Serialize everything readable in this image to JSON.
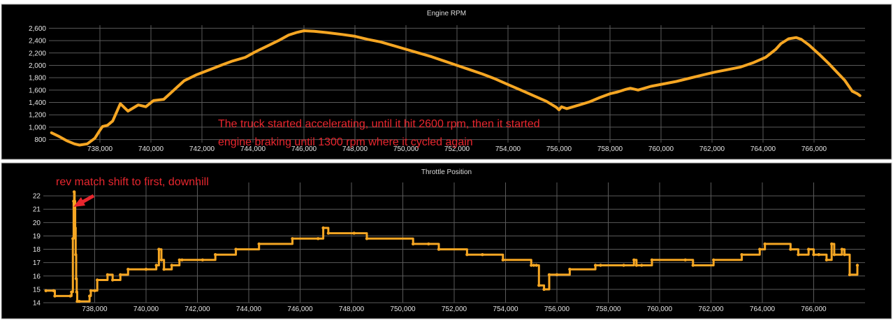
{
  "chart_data": [
    {
      "type": "line",
      "title": "Engine RPM",
      "xlabel": "",
      "ylabel": "",
      "xlim": [
        736000,
        768000
      ],
      "ylim": [
        750,
        2650
      ],
      "x_ticks": [
        "738,000",
        "740,000",
        "742,000",
        "744,000",
        "746,000",
        "748,000",
        "750,000",
        "752,000",
        "754,000",
        "756,000",
        "758,000",
        "760,000",
        "762,000",
        "764,000",
        "766,000"
      ],
      "y_ticks": [
        "800",
        "1,000",
        "1,200",
        "1,400",
        "1,600",
        "1,800",
        "2,000",
        "2,200",
        "2,400",
        "2,600"
      ],
      "grid": true,
      "series": [
        {
          "color": "#f5a623",
          "x": [
            736100,
            736400,
            736700,
            737000,
            737200,
            737500,
            737800,
            738000,
            738100,
            738300,
            738500,
            738800,
            739100,
            739500,
            739800,
            740100,
            740500,
            740900,
            741300,
            741800,
            742300,
            742800,
            743200,
            743700,
            744100,
            744500,
            745000,
            745400,
            745700,
            746000,
            746400,
            746900,
            747500,
            748000,
            748500,
            749000,
            749500,
            750000,
            750500,
            751000,
            751500,
            752000,
            752500,
            753000,
            753500,
            754000,
            754500,
            755000,
            755500,
            755900,
            756000,
            756100,
            756300,
            756800,
            757200,
            757600,
            758000,
            758300,
            758600,
            758800,
            759100,
            759600,
            760100,
            760600,
            761100,
            761600,
            762100,
            762600,
            763100,
            763600,
            764100,
            764500,
            764700,
            765000,
            765300,
            765500,
            765800,
            766200,
            766600,
            766900,
            767200,
            767500,
            767700,
            767800
          ],
          "y": [
            910,
            850,
            780,
            730,
            710,
            730,
            820,
            950,
            1010,
            1030,
            1100,
            1380,
            1260,
            1360,
            1330,
            1430,
            1450,
            1600,
            1750,
            1850,
            1930,
            2010,
            2070,
            2130,
            2220,
            2300,
            2400,
            2490,
            2530,
            2560,
            2550,
            2530,
            2500,
            2470,
            2420,
            2380,
            2320,
            2260,
            2200,
            2140,
            2070,
            2000,
            1930,
            1860,
            1780,
            1690,
            1600,
            1510,
            1420,
            1320,
            1280,
            1330,
            1300,
            1360,
            1410,
            1480,
            1540,
            1570,
            1610,
            1630,
            1600,
            1660,
            1700,
            1740,
            1790,
            1840,
            1890,
            1930,
            1970,
            2040,
            2130,
            2260,
            2350,
            2430,
            2450,
            2420,
            2330,
            2180,
            2020,
            1890,
            1760,
            1580,
            1540,
            1510
          ]
        }
      ],
      "annotations": [
        "The truck started accelerating, until it hit 2600 rpm, then it started",
        "engine braking until 1300 rpm where it cycled again"
      ]
    },
    {
      "type": "line",
      "title": "Throttle Position",
      "xlabel": "",
      "ylabel": "",
      "xlim": [
        736000,
        768000
      ],
      "ylim": [
        14,
        23
      ],
      "x_ticks": [
        "738,000",
        "740,000",
        "742,000",
        "744,000",
        "746,000",
        "748,000",
        "750,000",
        "752,000",
        "754,000",
        "756,000",
        "758,000",
        "760,000",
        "762,000",
        "764,000",
        "766,000"
      ],
      "y_ticks": [
        "14",
        "15",
        "16",
        "17",
        "18",
        "19",
        "20",
        "21",
        "22"
      ],
      "grid": true,
      "series": [
        {
          "color": "#f5a623",
          "x": [
            736100,
            736400,
            736450,
            737050,
            737100,
            737150,
            737180,
            737200,
            737220,
            737240,
            737260,
            737280,
            737300,
            737320,
            737400,
            737800,
            737850,
            738000,
            738100,
            738500,
            738700,
            739000,
            739300,
            740000,
            740400,
            740500,
            740600,
            740700,
            741000,
            741300,
            741400,
            742200,
            742700,
            743500,
            744400,
            745700,
            746700,
            746900,
            747100,
            748100,
            748600,
            750400,
            751000,
            751400,
            752500,
            753100,
            753900,
            755000,
            755100,
            755200,
            755300,
            755500,
            755700,
            756000,
            756500,
            757500,
            757700,
            758600,
            759000,
            759100,
            759300,
            759700,
            761000,
            761300,
            762100,
            763200,
            763900,
            764100,
            765100,
            765400,
            765800,
            766000,
            766200,
            766500,
            766700,
            766800,
            767100,
            767200,
            767400,
            767700
          ],
          "y": [
            14.9,
            14.9,
            14.5,
            14.5,
            14.8,
            18.8,
            21.6,
            22.3,
            21.6,
            19.6,
            17.6,
            15.8,
            14.8,
            14.1,
            14.1,
            14.5,
            14.9,
            14.9,
            15.7,
            16.1,
            15.7,
            16.1,
            16.5,
            16.5,
            16.8,
            18.0,
            17.2,
            16.5,
            16.8,
            17.2,
            17.2,
            17.2,
            17.6,
            18.0,
            18.4,
            18.8,
            18.8,
            19.6,
            19.2,
            19.2,
            18.8,
            18.4,
            18.4,
            18.0,
            17.6,
            17.6,
            17.2,
            16.8,
            16.8,
            16.8,
            15.3,
            15.0,
            16.1,
            16.1,
            16.5,
            16.8,
            16.8,
            16.8,
            17.2,
            16.8,
            16.8,
            17.2,
            17.2,
            16.8,
            17.2,
            17.6,
            18.0,
            18.4,
            18.0,
            17.6,
            18.0,
            17.6,
            17.6,
            17.2,
            18.4,
            17.6,
            18.0,
            17.6,
            16.1,
            16.8
          ]
        }
      ],
      "annotations": [
        "rev match shift to first, downhill"
      ]
    }
  ]
}
